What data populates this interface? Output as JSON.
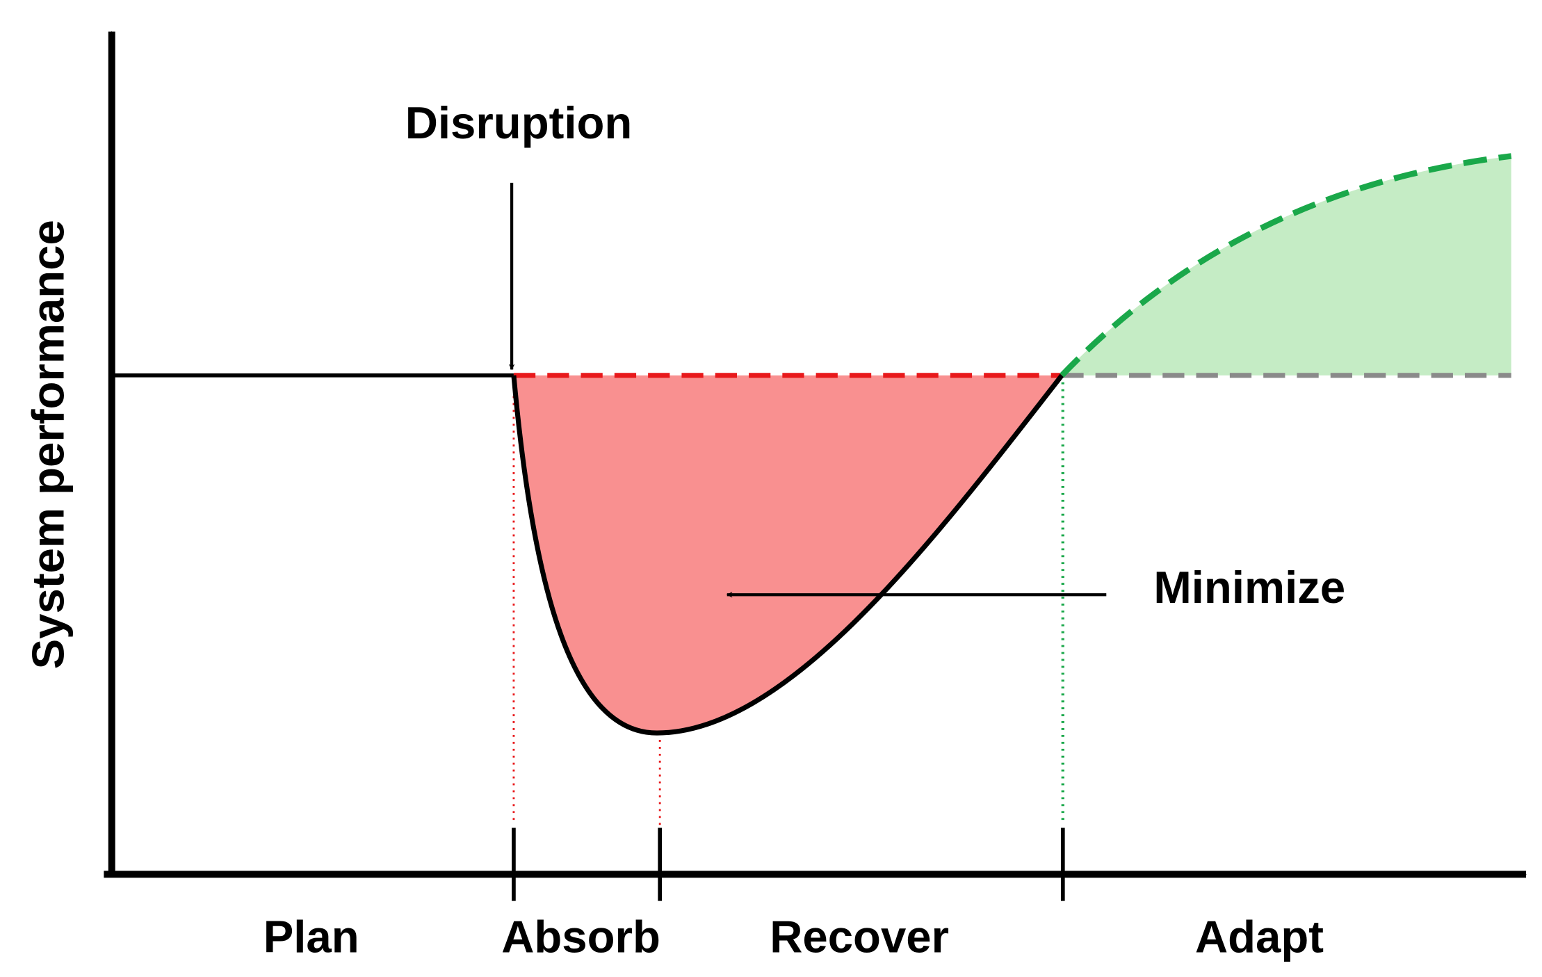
{
  "y_axis_label": "System performance",
  "annotations": {
    "disruption": "Disruption",
    "minimize": "Minimize"
  },
  "phases": [
    "Plan",
    "Absorb",
    "Recover",
    "Adapt"
  ]
}
